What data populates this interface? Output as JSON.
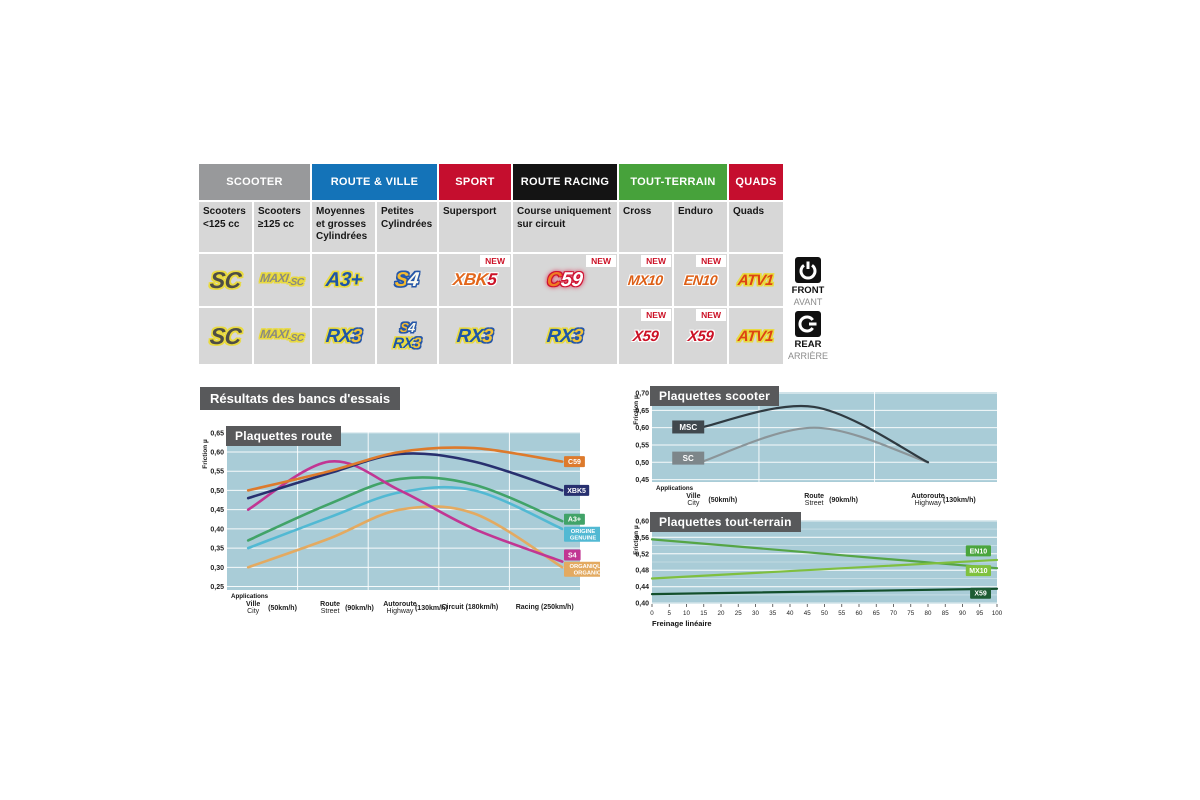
{
  "page": {
    "results_title": "Résultats des bancs d'essais"
  },
  "colors": {
    "chart_bg": "#a9ccd7",
    "title_badge_bg": "#58595b",
    "scooter_gray": "#98999b",
    "route_blue": "#1473b8",
    "sport_red": "#c50e2e",
    "racing_black": "#141414",
    "terrain_green": "#47a23b",
    "quads_red": "#c50e2e",
    "new_red": "#cc1126"
  },
  "table": {
    "new_label": "NEW",
    "groups": [
      {
        "label": "SCOOTER",
        "color": "#98999b"
      },
      {
        "label": "ROUTE & VILLE",
        "color": "#1473b8"
      },
      {
        "label": "SPORT",
        "color": "#c50e2e"
      },
      {
        "label": "ROUTE RACING",
        "color": "#141414"
      },
      {
        "label": "TOUT-TERRAIN",
        "color": "#47a23b"
      },
      {
        "label": "QUADS",
        "color": "#c50e2e"
      }
    ],
    "columns": [
      "Scooters <125 cc",
      "Scooters ≥125 cc",
      "Moyennes et grosses Cylindrées",
      "Petites Cylindrées",
      "Supersport",
      "Course uniquement sur circuit",
      "Cross",
      "Enduro",
      "Quads"
    ],
    "front": [
      {
        "text": "SC"
      },
      {
        "text": "MAXI",
        "sub": "-SC"
      },
      {
        "text": "A3+"
      },
      {
        "text": "S",
        "text2": "4"
      },
      {
        "text": "XBK",
        "text2": "5",
        "new": true
      },
      {
        "text": "C",
        "text2": "59",
        "new": true
      },
      {
        "text": "MX10",
        "new": true
      },
      {
        "text": "EN10",
        "new": true
      },
      {
        "text": "ATV1"
      }
    ],
    "rear": [
      {
        "text": "SC"
      },
      {
        "text": "MAXI",
        "sub": "-SC"
      },
      {
        "text": "RX",
        "text2": "3"
      },
      {
        "top": "S",
        "top2": "4",
        "bottom": "RX",
        "bottom2": "3"
      },
      {
        "text": "RX",
        "text2": "3"
      },
      {
        "text": "RX",
        "text2": "3"
      },
      {
        "text": "X59",
        "new": true
      },
      {
        "text": "X59",
        "new": true
      },
      {
        "text": "ATV1"
      }
    ],
    "legend": {
      "front": "FRONT",
      "front_sub": "AVANT",
      "rear": "REAR",
      "rear_sub": "ARRIÈRE"
    }
  },
  "chart_data": [
    {
      "id": "route",
      "type": "line",
      "title": "Plaquettes route",
      "ylabel": "Friction µ",
      "xlabel_caption": "Applications",
      "ylim": [
        0.25,
        0.65
      ],
      "ytick_step": 0.05,
      "grid": true,
      "legend_position": "right",
      "categories": [
        {
          "fr": "Ville",
          "en": "City",
          "speed": "(50km/h)"
        },
        {
          "fr": "Route",
          "en": "Street",
          "speed": "(90km/h)"
        },
        {
          "fr": "Autoroute",
          "en": "Highway",
          "speed": "(130km/h)"
        },
        {
          "fr": "Circuit (180km/h)"
        },
        {
          "fr": "Racing (250km/h)"
        }
      ],
      "series": [
        {
          "name": "ORGANIQUE ORGANIC",
          "color": "#e3aa61",
          "badge": [
            "ORGANIQUE",
            "ORGANIC"
          ],
          "badge_y": 0.295,
          "values": [
            0.3,
            0.375,
            0.45,
            0.44,
            0.3
          ]
        },
        {
          "name": "ORIGINE GENUINE",
          "color": "#52b9d3",
          "badge": [
            "ORIGINE",
            "GENUINE"
          ],
          "badge_y": 0.386,
          "values": [
            0.35,
            0.43,
            0.495,
            0.5,
            0.4
          ]
        },
        {
          "name": "A3+",
          "color": "#41a368",
          "badge": [
            "A3+"
          ],
          "badge_y": 0.425,
          "values": [
            0.37,
            0.465,
            0.53,
            0.515,
            0.42
          ]
        },
        {
          "name": "S4",
          "color": "#c13693",
          "badge": [
            "S4"
          ],
          "badge_y": 0.332,
          "values": [
            0.45,
            0.575,
            0.5,
            0.4,
            0.315
          ]
        },
        {
          "name": "XBK5",
          "color": "#28306f",
          "badge": [
            "XBK5"
          ],
          "badge_y": 0.5,
          "values": [
            0.48,
            0.545,
            0.595,
            0.575,
            0.5
          ]
        },
        {
          "name": "C59",
          "color": "#dd7a2c",
          "badge": [
            "C59"
          ],
          "badge_y": 0.575,
          "values": [
            0.5,
            0.55,
            0.6,
            0.61,
            0.575
          ]
        }
      ]
    },
    {
      "id": "scooter",
      "type": "line",
      "title": "Plaquettes scooter",
      "ylabel": "Friction µ",
      "xlabel_caption": "Applications",
      "ylim": [
        0.45,
        0.7
      ],
      "ytick_step": 0.05,
      "grid": true,
      "legend_position": "inline",
      "categories": [
        {
          "fr": "Ville",
          "en": "City",
          "speed": "(50km/h)"
        },
        {
          "fr": "Route",
          "en": "Street",
          "speed": "(90km/h)"
        },
        {
          "fr": "Autoroute",
          "en": "Highway",
          "speed": "(130km/h)"
        }
      ],
      "series": [
        {
          "name": "SC",
          "color": "#8b9599",
          "box_color": "#7d868a",
          "box": {
            "fx": 0.105,
            "v": 0.512
          },
          "values": [
            0.5,
            0.6,
            0.5
          ]
        },
        {
          "name": "MSC",
          "color": "#2f3a41",
          "box_color": "#40484d",
          "box": {
            "fx": 0.105,
            "v": 0.602
          },
          "values": [
            0.6,
            0.66,
            0.5
          ]
        }
      ]
    },
    {
      "id": "terrain",
      "type": "line",
      "title": "Plaquettes tout-terrain",
      "ylabel": "Friction µ",
      "xlabel": "Freinage linéaire",
      "ylim": [
        0.4,
        0.6
      ],
      "ytick_step": 0.04,
      "ytick_minor": 0.02,
      "x_numeric": true,
      "xlim": [
        0,
        100
      ],
      "xtick_step": 5,
      "grid": true,
      "legend_position": "right",
      "series": [
        {
          "name": "EN10",
          "color": "#55a546",
          "badge": [
            "EN10"
          ],
          "badge_color": "#4aa53d",
          "badge_y": 0.527,
          "points": [
            [
              0,
              0.555
            ],
            [
              100,
              0.485
            ]
          ]
        },
        {
          "name": "MX10",
          "color": "#7fbf3f",
          "badge": [
            "MX10"
          ],
          "badge_color": "#7fc13e",
          "badge_y": 0.479,
          "points": [
            [
              0,
              0.46
            ],
            [
              100,
              0.505
            ]
          ]
        },
        {
          "name": "X59",
          "color": "#134f2c",
          "badge": [
            "X59"
          ],
          "badge_color": "#1d5c33",
          "badge_y": 0.424,
          "points": [
            [
              0,
              0.422
            ],
            [
              100,
              0.435
            ]
          ]
        }
      ]
    }
  ]
}
